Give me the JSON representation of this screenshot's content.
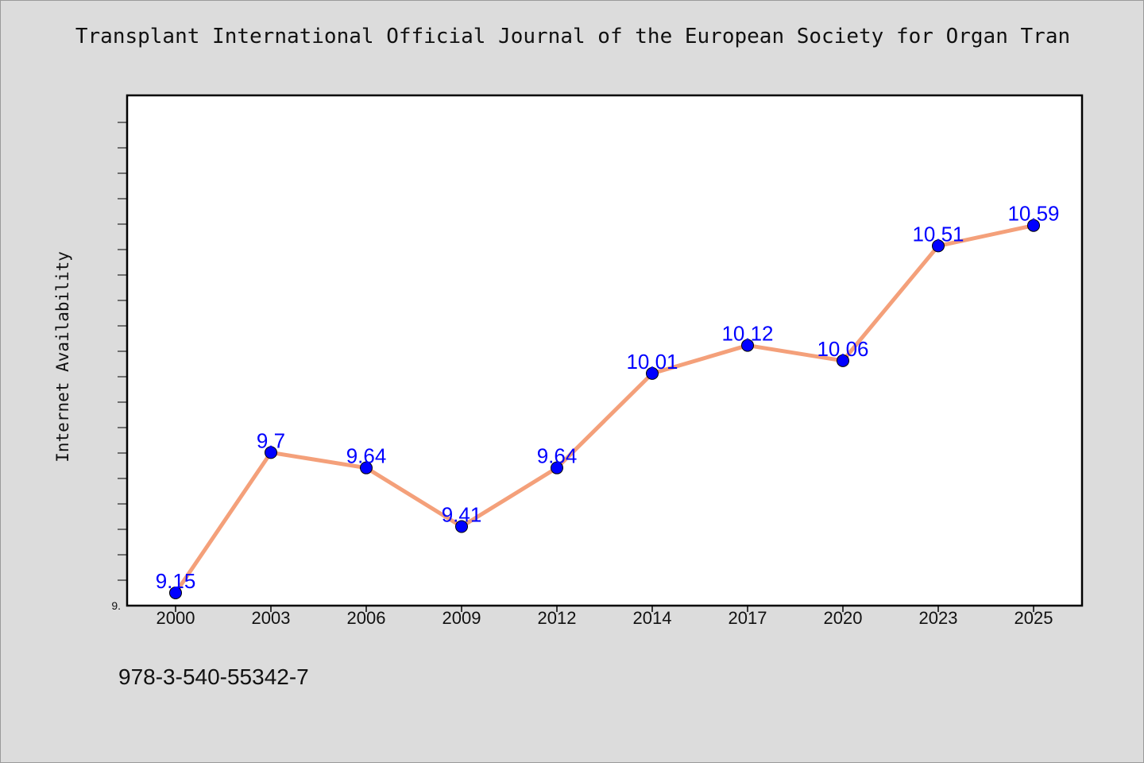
{
  "chart_data": {
    "type": "line",
    "title": "Transplant International Official Journal of the European Society for Organ Tran",
    "xlabel": "",
    "ylabel": "Internet Availability",
    "categories": [
      "2000",
      "2003",
      "2006",
      "2009",
      "2012",
      "2014",
      "2017",
      "2020",
      "2023",
      "2025"
    ],
    "series": [
      {
        "values": [
          9.15,
          9.7,
          9.64,
          9.41,
          9.64,
          10.01,
          10.12,
          10.06,
          10.51,
          10.59
        ],
        "data_labels": [
          "9.15",
          "9.7",
          "9.64",
          "9.41",
          "9.64",
          "10.01",
          "10.12",
          "10.06",
          "10.51",
          "10.59"
        ]
      }
    ],
    "ylim": [
      9.1,
      11.1
    ],
    "y_tick_labels": [
      "9."
    ],
    "line_color": "#f4a07a",
    "marker_color": "#0000ff",
    "label_color": "#0000ff",
    "grid": false,
    "legend": "none"
  },
  "footer_note": "978-3-540-55342-7"
}
